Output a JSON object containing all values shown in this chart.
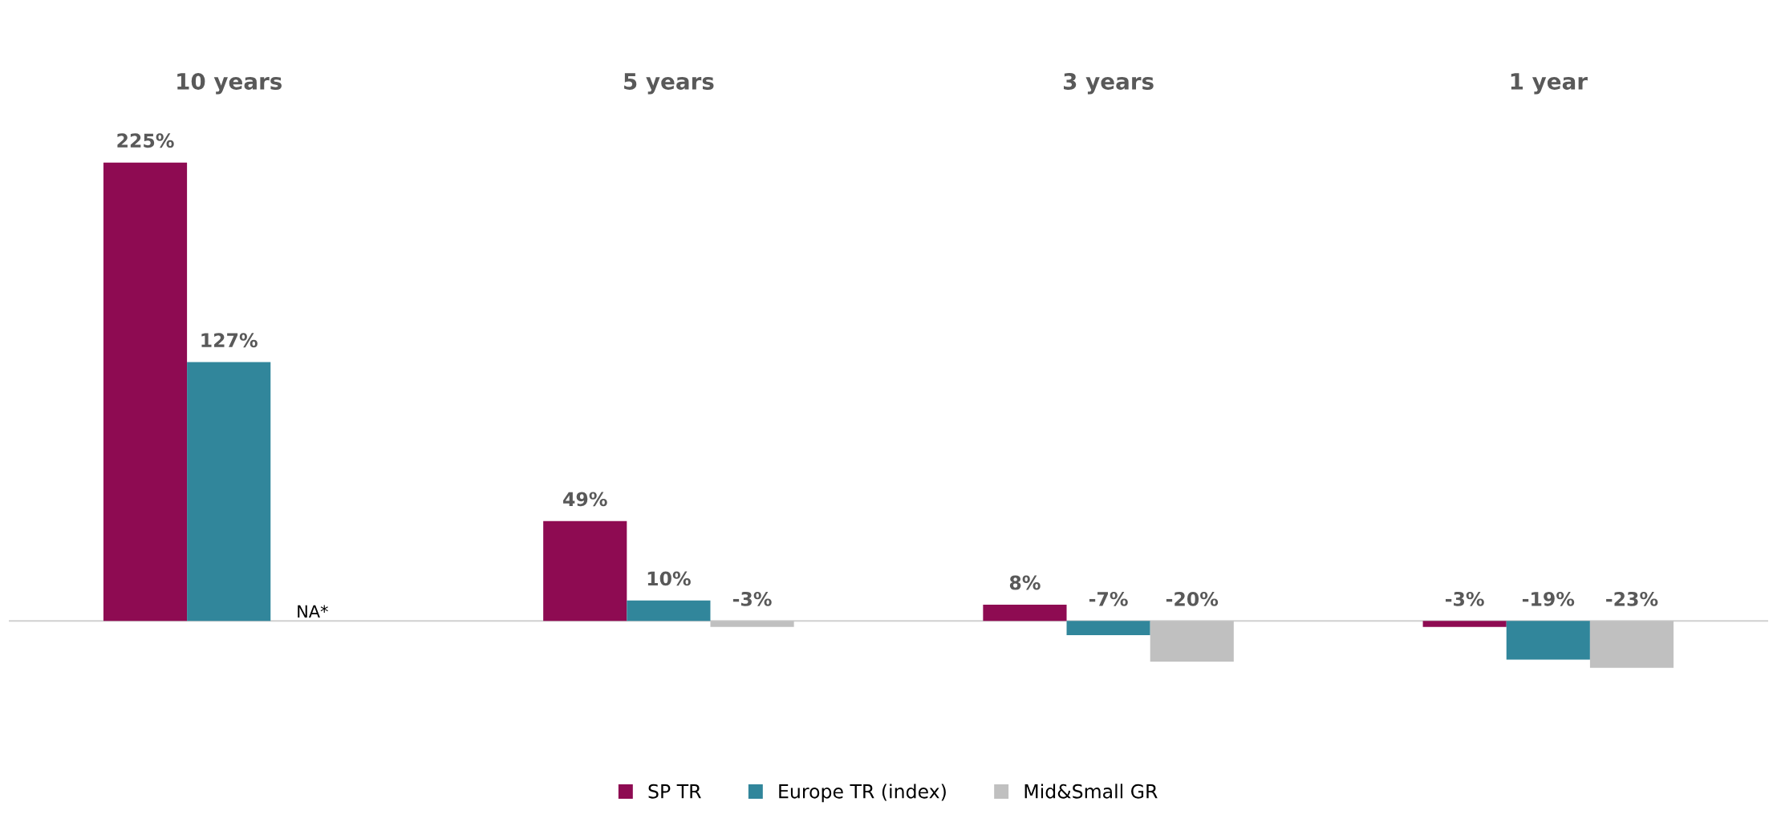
{
  "chart_data": {
    "type": "bar",
    "categories": [
      "10 years",
      "5 years",
      "3 years",
      "1 year"
    ],
    "series": [
      {
        "name": "SP TR",
        "color": "#8e0b52",
        "values": [
          225,
          49,
          8,
          -3
        ],
        "value_labels": [
          "225%",
          "49%",
          "8%",
          "-3%"
        ]
      },
      {
        "name": "Europe TR (index)",
        "color": "#31869b",
        "values": [
          127,
          10,
          -7,
          -19
        ],
        "value_labels": [
          "127%",
          "10%",
          "-7%",
          "-19%"
        ]
      },
      {
        "name": "Mid&Small GR",
        "color": "#c0c0c0",
        "values": [
          null,
          -3,
          -20,
          -23
        ],
        "value_labels": [
          null,
          "-3%",
          "-20%",
          "-23%"
        ]
      }
    ],
    "annotations": [
      "NA*"
    ],
    "legend": "bottom",
    "grid": false
  }
}
